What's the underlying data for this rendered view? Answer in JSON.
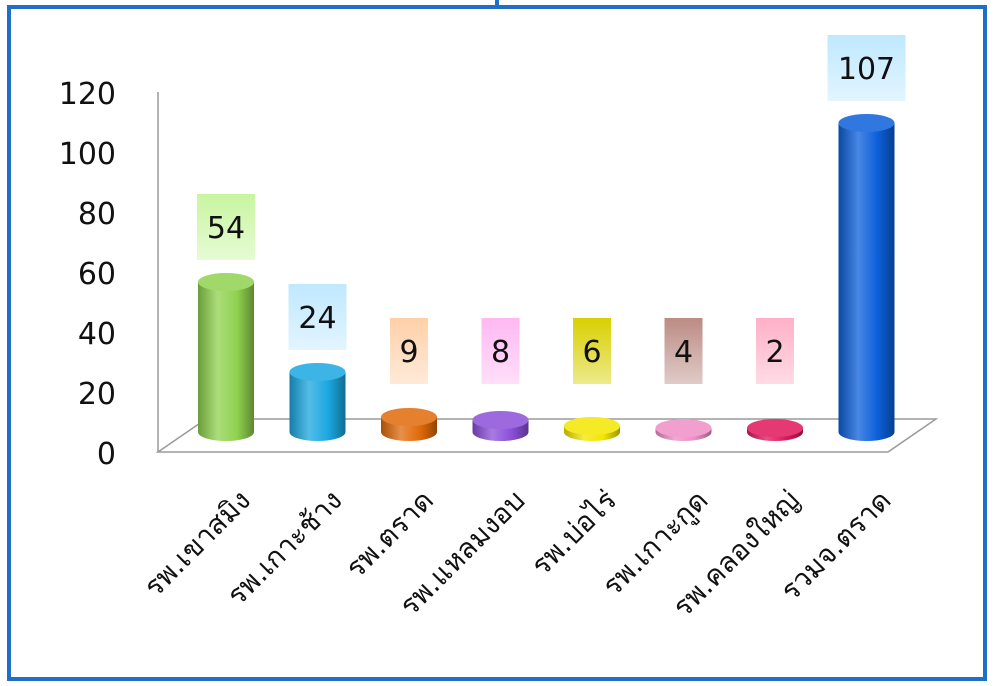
{
  "chart_data": {
    "type": "bar",
    "title": "",
    "xlabel": "",
    "ylabel": "",
    "ylim": [
      0,
      120
    ],
    "yticks": [
      0,
      20,
      40,
      60,
      80,
      100,
      120
    ],
    "grid": false,
    "legend": "none",
    "categories": [
      "รพ.เขาสมิง",
      "รพ.เกาะช้าง",
      "รพ.ตราด",
      "รพ.แหลมงอบ",
      "รพ.บ่อไร่",
      "รพ.เกาะกูด",
      "รพ.คลองใหญ่",
      "รวมจ.ตราด"
    ],
    "values": [
      54,
      24,
      9,
      8,
      6,
      4,
      2,
      107
    ],
    "bar_colors": [
      "#8fd14f",
      "#1aa7e0",
      "#e06a0a",
      "#8a4fd9",
      "#f2e600",
      "#ee8ec6",
      "#e0165c",
      "#0c5fdb"
    ],
    "label_box_colors": [
      "#c8f5a0",
      "#bfe8ff",
      "#ffd0a8",
      "#ffb8f2",
      "#d8d000",
      "#bb8c84",
      "#ffb0c8",
      "#bfe8ff"
    ],
    "frame_color": "#1f6fc8"
  }
}
